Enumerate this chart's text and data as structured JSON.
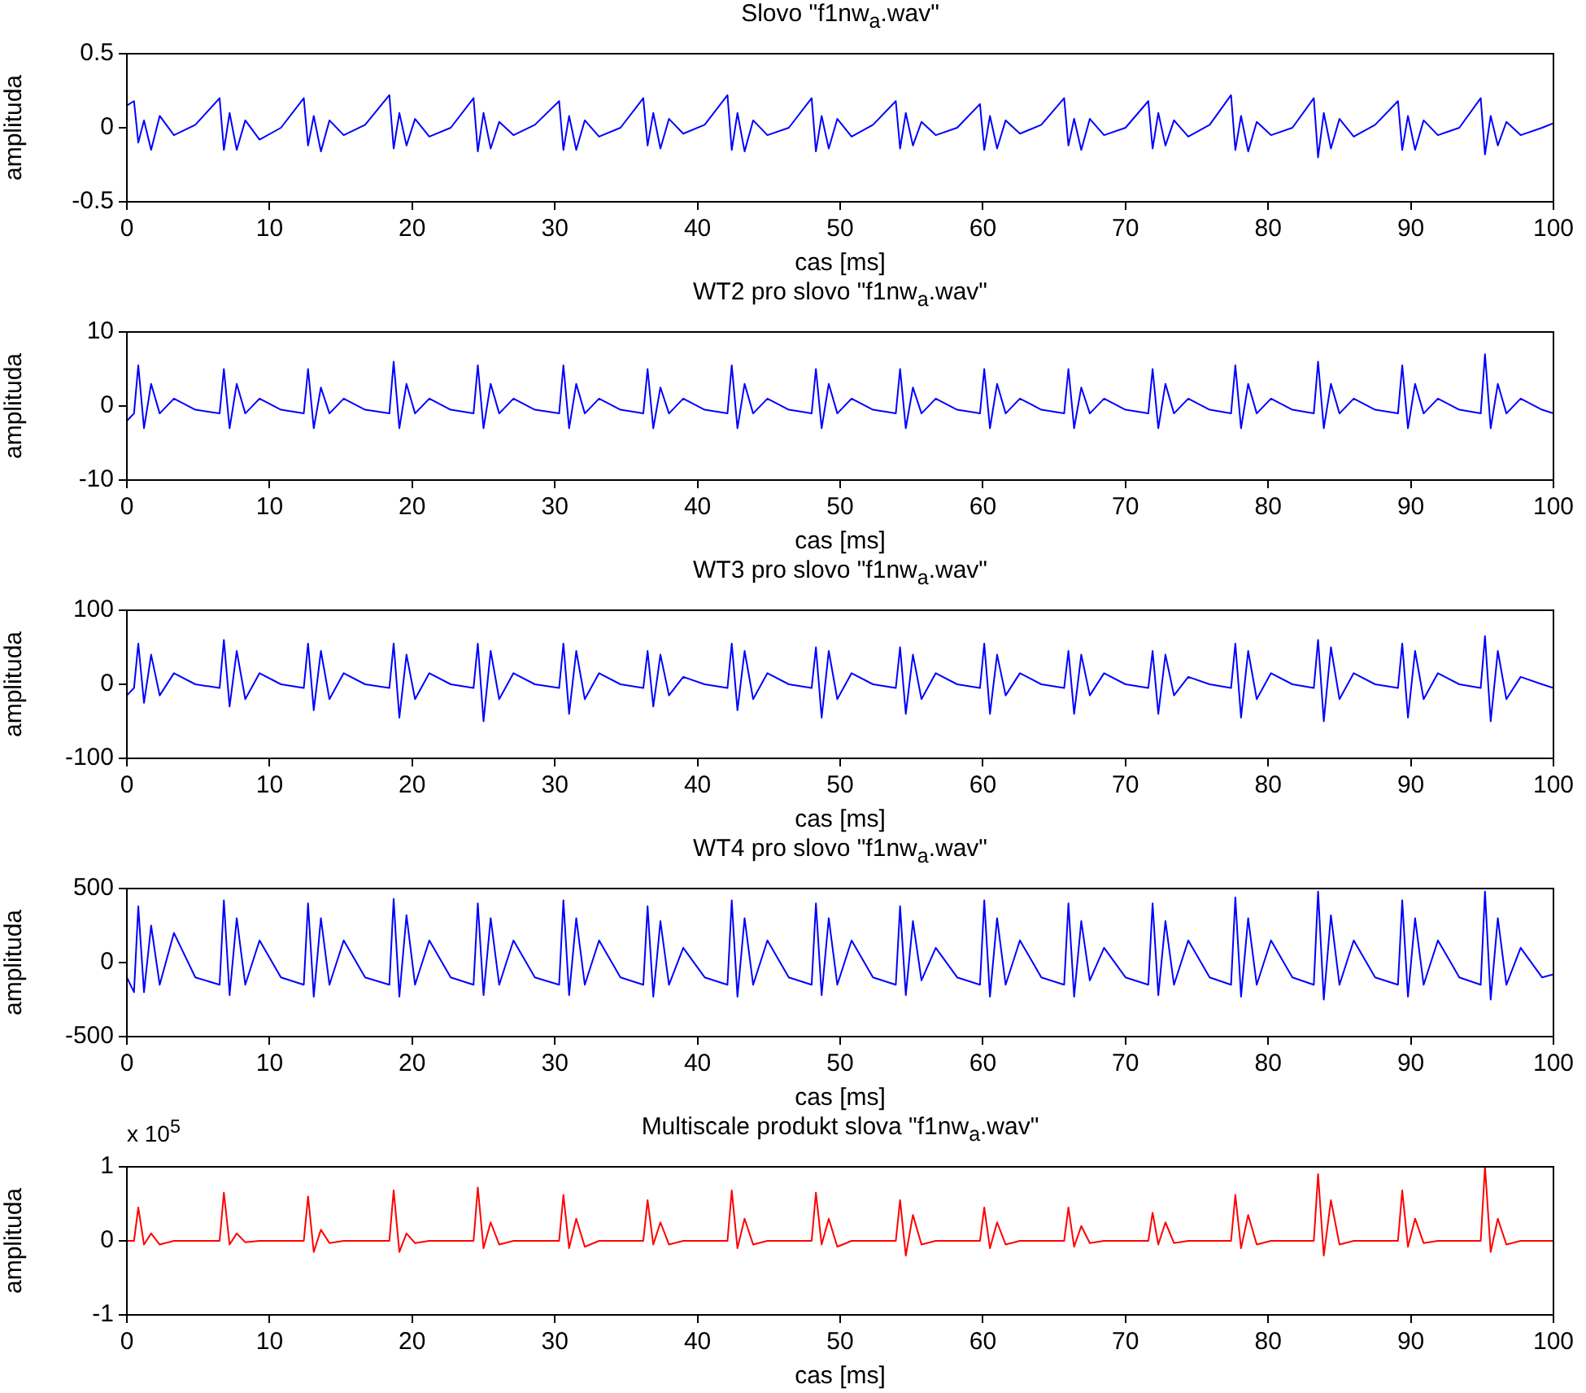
{
  "chart_data": [
    {
      "type": "line",
      "title": "Slovo \"f1nw$_{a}$.wav\"",
      "xlabel": "cas [ms]",
      "ylabel": "amplituda",
      "xlim": [
        0,
        100
      ],
      "xticks": [
        0,
        10,
        20,
        30,
        40,
        50,
        60,
        70,
        80,
        90,
        100
      ],
      "ylim": [
        -0.5,
        0.5
      ],
      "yticks": [
        -0.5,
        0,
        0.5
      ],
      "x": [
        0,
        0.5,
        0.8,
        1.2,
        1.7,
        2.3,
        3.3,
        4.8,
        6.5,
        6.8,
        7.2,
        7.7,
        8.3,
        9.3,
        10.8,
        12.4,
        12.7,
        13.1,
        13.6,
        14.2,
        15.2,
        16.7,
        18.4,
        18.7,
        19.1,
        19.6,
        20.2,
        21.2,
        22.7,
        24.3,
        24.6,
        25.0,
        25.5,
        26.1,
        27.1,
        28.6,
        30.3,
        30.6,
        31.0,
        31.5,
        32.1,
        33.1,
        34.6,
        36.2,
        36.5,
        36.9,
        37.4,
        38.0,
        39.0,
        40.5,
        42.1,
        42.4,
        42.8,
        43.3,
        43.9,
        44.9,
        46.4,
        48.0,
        48.3,
        48.7,
        49.2,
        49.8,
        50.8,
        52.3,
        53.9,
        54.2,
        54.6,
        55.1,
        55.7,
        56.7,
        58.2,
        59.8,
        60.1,
        60.5,
        61.0,
        61.6,
        62.6,
        64.1,
        65.7,
        66.0,
        66.4,
        66.9,
        67.5,
        68.5,
        70.0,
        71.6,
        71.9,
        72.3,
        72.8,
        73.4,
        74.4,
        75.9,
        77.4,
        77.7,
        78.1,
        78.6,
        79.2,
        80.2,
        81.7,
        83.2,
        83.5,
        83.9,
        84.4,
        85.0,
        86.0,
        87.5,
        89.1,
        89.4,
        89.8,
        90.3,
        90.9,
        91.9,
        93.4,
        94.9,
        95.2,
        95.6,
        96.1,
        96.7,
        97.7,
        99.2,
        100
      ],
      "series": [
        {
          "color": "#0000ff",
          "values": [
            0.15,
            0.18,
            -0.1,
            0.05,
            -0.15,
            0.08,
            -0.05,
            0.02,
            0.2,
            -0.15,
            0.1,
            -0.15,
            0.05,
            -0.08,
            0.0,
            0.2,
            -0.12,
            0.08,
            -0.16,
            0.05,
            -0.05,
            0.02,
            0.22,
            -0.14,
            0.1,
            -0.12,
            0.06,
            -0.06,
            0.0,
            0.2,
            -0.16,
            0.1,
            -0.14,
            0.04,
            -0.05,
            0.02,
            0.18,
            -0.15,
            0.08,
            -0.15,
            0.05,
            -0.06,
            0.0,
            0.2,
            -0.12,
            0.1,
            -0.14,
            0.06,
            -0.04,
            0.02,
            0.22,
            -0.15,
            0.1,
            -0.16,
            0.05,
            -0.05,
            0.0,
            0.2,
            -0.16,
            0.08,
            -0.14,
            0.06,
            -0.06,
            0.02,
            0.18,
            -0.14,
            0.1,
            -0.12,
            0.04,
            -0.05,
            0.0,
            0.16,
            -0.15,
            0.08,
            -0.14,
            0.05,
            -0.04,
            0.02,
            0.2,
            -0.12,
            0.06,
            -0.15,
            0.06,
            -0.05,
            0.0,
            0.18,
            -0.14,
            0.1,
            -0.12,
            0.05,
            -0.06,
            0.02,
            0.22,
            -0.15,
            0.08,
            -0.16,
            0.04,
            -0.05,
            0.0,
            0.2,
            -0.2,
            0.1,
            -0.14,
            0.06,
            -0.06,
            0.02,
            0.18,
            -0.15,
            0.08,
            -0.15,
            0.05,
            -0.05,
            0.0,
            0.2,
            -0.18,
            0.08,
            -0.12,
            0.04,
            -0.05,
            0.0,
            0.03
          ]
        }
      ]
    },
    {
      "type": "line",
      "title": "WT2 pro slovo \"f1nw$_{a}$.wav\"",
      "xlabel": "cas [ms]",
      "ylabel": "amplituda",
      "xlim": [
        0,
        100
      ],
      "xticks": [
        0,
        10,
        20,
        30,
        40,
        50,
        60,
        70,
        80,
        90,
        100
      ],
      "ylim": [
        -10,
        10
      ],
      "yticks": [
        -10,
        0,
        10
      ],
      "x": [
        0,
        0.5,
        0.8,
        1.2,
        1.7,
        2.3,
        3.3,
        4.8,
        6.5,
        6.8,
        7.2,
        7.7,
        8.3,
        9.3,
        10.8,
        12.4,
        12.7,
        13.1,
        13.6,
        14.2,
        15.2,
        16.7,
        18.4,
        18.7,
        19.1,
        19.6,
        20.2,
        21.2,
        22.7,
        24.3,
        24.6,
        25.0,
        25.5,
        26.1,
        27.1,
        28.6,
        30.3,
        30.6,
        31.0,
        31.5,
        32.1,
        33.1,
        34.6,
        36.2,
        36.5,
        36.9,
        37.4,
        38.0,
        39.0,
        40.5,
        42.1,
        42.4,
        42.8,
        43.3,
        43.9,
        44.9,
        46.4,
        48.0,
        48.3,
        48.7,
        49.2,
        49.8,
        50.8,
        52.3,
        53.9,
        54.2,
        54.6,
        55.1,
        55.7,
        56.7,
        58.2,
        59.8,
        60.1,
        60.5,
        61.0,
        61.6,
        62.6,
        64.1,
        65.7,
        66.0,
        66.4,
        66.9,
        67.5,
        68.5,
        70.0,
        71.6,
        71.9,
        72.3,
        72.8,
        73.4,
        74.4,
        75.9,
        77.4,
        77.7,
        78.1,
        78.6,
        79.2,
        80.2,
        81.7,
        83.2,
        83.5,
        83.9,
        84.4,
        85.0,
        86.0,
        87.5,
        89.1,
        89.4,
        89.8,
        90.3,
        90.9,
        91.9,
        93.4,
        94.9,
        95.2,
        95.6,
        96.1,
        96.7,
        97.7,
        99.2,
        100
      ],
      "series": [
        {
          "color": "#0000ff",
          "values": [
            -2,
            -1,
            5.5,
            -3,
            3,
            -1,
            1,
            -0.5,
            -1,
            5,
            -3,
            3,
            -1,
            1,
            -0.5,
            -1,
            5,
            -3,
            2.5,
            -1,
            1,
            -0.5,
            -1,
            6,
            -3,
            3,
            -1,
            1,
            -0.5,
            -1,
            5.5,
            -3,
            3,
            -1,
            1,
            -0.5,
            -1,
            5.5,
            -3,
            3,
            -1,
            1,
            -0.5,
            -1,
            5,
            -3,
            2.5,
            -1,
            1,
            -0.5,
            -1,
            5.5,
            -3,
            3,
            -1,
            1,
            -0.5,
            -1,
            5,
            -3,
            3,
            -1,
            1,
            -0.5,
            -1,
            5,
            -3,
            2.5,
            -1,
            1,
            -0.5,
            -1,
            5,
            -3,
            3,
            -1,
            1,
            -0.5,
            -1,
            5,
            -3,
            2.5,
            -1,
            1,
            -0.5,
            -1,
            5,
            -3,
            3,
            -1,
            1,
            -0.5,
            -1,
            5.5,
            -3,
            3,
            -1,
            1,
            -0.5,
            -1,
            6,
            -3,
            3,
            -1,
            1,
            -0.5,
            -1,
            5.5,
            -3,
            3,
            -1,
            1,
            -0.5,
            -1,
            7,
            -3,
            3,
            -1,
            1,
            -0.5,
            -1
          ]
        }
      ]
    },
    {
      "type": "line",
      "title": "WT3 pro slovo \"f1nw$_{a}$.wav\"",
      "xlabel": "cas [ms]",
      "ylabel": "amplituda",
      "xlim": [
        0,
        100
      ],
      "xticks": [
        0,
        10,
        20,
        30,
        40,
        50,
        60,
        70,
        80,
        90,
        100
      ],
      "ylim": [
        -100,
        100
      ],
      "yticks": [
        -100,
        0,
        100
      ],
      "x": [
        0,
        0.5,
        0.8,
        1.2,
        1.7,
        2.3,
        3.3,
        4.8,
        6.5,
        6.8,
        7.2,
        7.7,
        8.3,
        9.3,
        10.8,
        12.4,
        12.7,
        13.1,
        13.6,
        14.2,
        15.2,
        16.7,
        18.4,
        18.7,
        19.1,
        19.6,
        20.2,
        21.2,
        22.7,
        24.3,
        24.6,
        25.0,
        25.5,
        26.1,
        27.1,
        28.6,
        30.3,
        30.6,
        31.0,
        31.5,
        32.1,
        33.1,
        34.6,
        36.2,
        36.5,
        36.9,
        37.4,
        38.0,
        39.0,
        40.5,
        42.1,
        42.4,
        42.8,
        43.3,
        43.9,
        44.9,
        46.4,
        48.0,
        48.3,
        48.7,
        49.2,
        49.8,
        50.8,
        52.3,
        53.9,
        54.2,
        54.6,
        55.1,
        55.7,
        56.7,
        58.2,
        59.8,
        60.1,
        60.5,
        61.0,
        61.6,
        62.6,
        64.1,
        65.7,
        66.0,
        66.4,
        66.9,
        67.5,
        68.5,
        70.0,
        71.6,
        71.9,
        72.3,
        72.8,
        73.4,
        74.4,
        75.9,
        77.4,
        77.7,
        78.1,
        78.6,
        79.2,
        80.2,
        81.7,
        83.2,
        83.5,
        83.9,
        84.4,
        85.0,
        86.0,
        87.5,
        89.1,
        89.4,
        89.8,
        90.3,
        90.9,
        91.9,
        93.4,
        94.9,
        95.2,
        95.6,
        96.1,
        96.7,
        97.7,
        99.2,
        100
      ],
      "series": [
        {
          "color": "#0000ff",
          "values": [
            -15,
            -5,
            55,
            -25,
            40,
            -15,
            15,
            0,
            -5,
            60,
            -30,
            45,
            -20,
            15,
            0,
            -5,
            55,
            -35,
            45,
            -20,
            15,
            0,
            -5,
            55,
            -45,
            40,
            -20,
            15,
            0,
            -5,
            55,
            -50,
            45,
            -20,
            15,
            0,
            -5,
            55,
            -40,
            45,
            -20,
            15,
            0,
            -5,
            45,
            -30,
            40,
            -15,
            10,
            0,
            -5,
            55,
            -35,
            45,
            -20,
            15,
            0,
            -5,
            50,
            -45,
            45,
            -20,
            15,
            0,
            -5,
            50,
            -40,
            40,
            -20,
            15,
            0,
            -5,
            55,
            -40,
            40,
            -15,
            15,
            0,
            -5,
            45,
            -40,
            40,
            -15,
            15,
            0,
            -5,
            45,
            -40,
            40,
            -15,
            10,
            0,
            -5,
            55,
            -45,
            45,
            -20,
            15,
            0,
            -5,
            60,
            -50,
            50,
            -20,
            15,
            0,
            -5,
            55,
            -45,
            45,
            -20,
            15,
            0,
            -5,
            65,
            -50,
            45,
            -20,
            10,
            0,
            -5
          ]
        }
      ]
    },
    {
      "type": "line",
      "title": "WT4 pro slovo \"f1nw$_{a}$.wav\"",
      "xlabel": "cas [ms]",
      "ylabel": "amplituda",
      "xlim": [
        0,
        100
      ],
      "xticks": [
        0,
        10,
        20,
        30,
        40,
        50,
        60,
        70,
        80,
        90,
        100
      ],
      "ylim": [
        -500,
        500
      ],
      "yticks": [
        -500,
        0,
        500
      ],
      "x": [
        0,
        0.5,
        0.8,
        1.2,
        1.7,
        2.3,
        3.3,
        4.8,
        6.5,
        6.8,
        7.2,
        7.7,
        8.3,
        9.3,
        10.8,
        12.4,
        12.7,
        13.1,
        13.6,
        14.2,
        15.2,
        16.7,
        18.4,
        18.7,
        19.1,
        19.6,
        20.2,
        21.2,
        22.7,
        24.3,
        24.6,
        25.0,
        25.5,
        26.1,
        27.1,
        28.6,
        30.3,
        30.6,
        31.0,
        31.5,
        32.1,
        33.1,
        34.6,
        36.2,
        36.5,
        36.9,
        37.4,
        38.0,
        39.0,
        40.5,
        42.1,
        42.4,
        42.8,
        43.3,
        43.9,
        44.9,
        46.4,
        48.0,
        48.3,
        48.7,
        49.2,
        49.8,
        50.8,
        52.3,
        53.9,
        54.2,
        54.6,
        55.1,
        55.7,
        56.7,
        58.2,
        59.8,
        60.1,
        60.5,
        61.0,
        61.6,
        62.6,
        64.1,
        65.7,
        66.0,
        66.4,
        66.9,
        67.5,
        68.5,
        70.0,
        71.6,
        71.9,
        72.3,
        72.8,
        73.4,
        74.4,
        75.9,
        77.4,
        77.7,
        78.1,
        78.6,
        79.2,
        80.2,
        81.7,
        83.2,
        83.5,
        83.9,
        84.4,
        85.0,
        86.0,
        87.5,
        89.1,
        89.4,
        89.8,
        90.3,
        90.9,
        91.9,
        93.4,
        94.9,
        95.2,
        95.6,
        96.1,
        96.7,
        97.7,
        99.2,
        100
      ],
      "series": [
        {
          "color": "#0000ff",
          "values": [
            -100,
            -200,
            380,
            -200,
            250,
            -150,
            200,
            -100,
            -150,
            420,
            -220,
            300,
            -150,
            150,
            -100,
            -150,
            400,
            -230,
            300,
            -150,
            150,
            -100,
            -150,
            430,
            -230,
            320,
            -150,
            150,
            -100,
            -150,
            400,
            -220,
            300,
            -150,
            150,
            -100,
            -150,
            420,
            -220,
            300,
            -150,
            150,
            -100,
            -150,
            380,
            -230,
            280,
            -150,
            100,
            -100,
            -150,
            420,
            -230,
            300,
            -150,
            150,
            -100,
            -150,
            400,
            -220,
            300,
            -150,
            150,
            -100,
            -150,
            380,
            -220,
            280,
            -120,
            100,
            -100,
            -150,
            420,
            -230,
            300,
            -150,
            150,
            -100,
            -150,
            400,
            -230,
            280,
            -120,
            100,
            -100,
            -150,
            400,
            -220,
            280,
            -150,
            150,
            -100,
            -150,
            440,
            -230,
            300,
            -150,
            150,
            -100,
            -150,
            480,
            -250,
            320,
            -150,
            150,
            -100,
            -150,
            420,
            -230,
            300,
            -150,
            150,
            -100,
            -150,
            480,
            -250,
            300,
            -150,
            100,
            -100,
            -80
          ]
        }
      ]
    },
    {
      "type": "line",
      "title": "Multiscale produkt slova \"f1nw$_{a}$.wav\"",
      "xlabel": "cas [ms]",
      "ylabel": "amplituda",
      "annotations": [
        "x 10$^{5}$"
      ],
      "xlim": [
        0,
        100
      ],
      "xticks": [
        0,
        10,
        20,
        30,
        40,
        50,
        60,
        70,
        80,
        90,
        100
      ],
      "ylim": [
        -1,
        1
      ],
      "yticks": [
        -1,
        0,
        1
      ],
      "x": [
        0,
        0.5,
        0.8,
        1.2,
        1.7,
        2.3,
        3.3,
        4.8,
        6.5,
        6.8,
        7.2,
        7.7,
        8.3,
        9.3,
        10.8,
        12.4,
        12.7,
        13.1,
        13.6,
        14.2,
        15.2,
        16.7,
        18.4,
        18.7,
        19.1,
        19.6,
        20.2,
        21.2,
        22.7,
        24.3,
        24.6,
        25.0,
        25.5,
        26.1,
        27.1,
        28.6,
        30.3,
        30.6,
        31.0,
        31.5,
        32.1,
        33.1,
        34.6,
        36.2,
        36.5,
        36.9,
        37.4,
        38.0,
        39.0,
        40.5,
        42.1,
        42.4,
        42.8,
        43.3,
        43.9,
        44.9,
        46.4,
        48.0,
        48.3,
        48.7,
        49.2,
        49.8,
        50.8,
        52.3,
        53.9,
        54.2,
        54.6,
        55.1,
        55.7,
        56.7,
        58.2,
        59.8,
        60.1,
        60.5,
        61.0,
        61.6,
        62.6,
        64.1,
        65.7,
        66.0,
        66.4,
        66.9,
        67.5,
        68.5,
        70.0,
        71.6,
        71.9,
        72.3,
        72.8,
        73.4,
        74.4,
        75.9,
        77.4,
        77.7,
        78.1,
        78.6,
        79.2,
        80.2,
        81.7,
        83.2,
        83.5,
        83.9,
        84.4,
        85.0,
        86.0,
        87.5,
        89.1,
        89.4,
        89.8,
        90.3,
        90.9,
        91.9,
        93.4,
        94.9,
        95.2,
        95.6,
        96.1,
        96.7,
        97.7,
        99.2,
        100
      ],
      "series": [
        {
          "color": "#ff0000",
          "values": [
            0,
            0,
            0.45,
            -0.05,
            0.1,
            -0.05,
            0,
            0,
            0,
            0.65,
            -0.05,
            0.1,
            -0.02,
            0,
            0,
            0,
            0.6,
            -0.15,
            0.15,
            -0.03,
            0,
            0,
            0,
            0.68,
            -0.15,
            0.1,
            -0.03,
            0,
            0,
            0,
            0.72,
            -0.1,
            0.25,
            -0.05,
            0,
            0,
            0,
            0.62,
            -0.1,
            0.3,
            -0.08,
            0,
            0,
            0,
            0.55,
            -0.05,
            0.25,
            -0.05,
            0,
            0,
            0,
            0.68,
            -0.1,
            0.3,
            -0.05,
            0,
            0,
            0,
            0.65,
            -0.05,
            0.3,
            -0.08,
            0,
            0,
            0,
            0.55,
            -0.2,
            0.35,
            -0.05,
            0,
            0,
            0,
            0.45,
            -0.1,
            0.25,
            -0.05,
            0,
            0,
            0,
            0.45,
            -0.08,
            0.2,
            -0.03,
            0,
            0,
            0,
            0.38,
            -0.05,
            0.25,
            -0.03,
            0,
            0,
            0,
            0.62,
            -0.1,
            0.35,
            -0.05,
            0,
            0,
            0,
            0.9,
            -0.2,
            0.55,
            -0.05,
            0,
            0,
            0,
            0.68,
            -0.08,
            0.3,
            -0.03,
            0,
            0,
            0,
            1.0,
            -0.15,
            0.3,
            -0.05,
            0,
            0,
            0
          ]
        }
      ]
    }
  ]
}
